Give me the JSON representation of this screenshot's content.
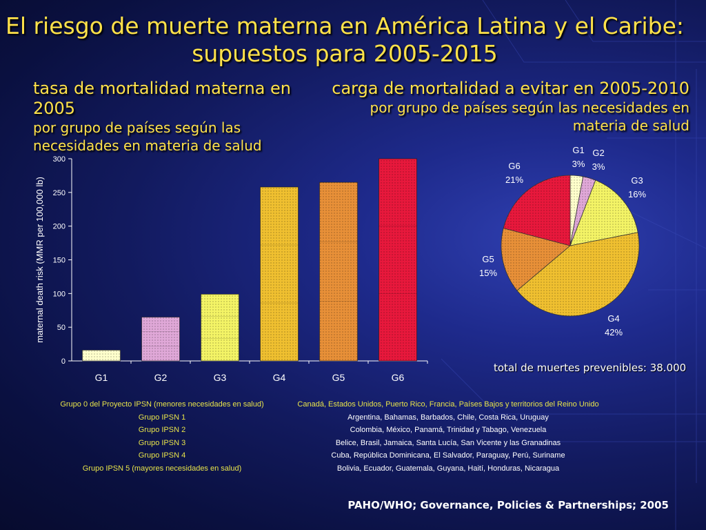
{
  "title": {
    "line1": "El riesgo de muerte materna en América Latina y el Caribe:",
    "line2": "supuestos para 2005-2015"
  },
  "left_subtitle": {
    "head": "tasa de mortalidad materna en 2005",
    "line1": "por grupo de países según las",
    "line2": "necesidades en materia de salud"
  },
  "right_subtitle": {
    "head": "carga de mortalidad a evitar en 2005-2010",
    "line1": "por grupo de países según las necesidades en",
    "line2": "materia de salud"
  },
  "total_text": "total de muertes prevenibles: 38.000",
  "legend": {
    "groups": [
      "Grupo 0 del Proyecto IPSN (menores necesidades en salud)",
      "Grupo IPSN 1",
      "Grupo IPSN 2",
      "Grupo IPSN 3",
      "Grupo IPSN 4",
      "Grupo IPSN 5 (mayores necesidades en salud)"
    ],
    "countries": [
      "Canadá, Estados Unidos, Puerto Rico, Francia, Países Bajos y territorios del Reino Unido",
      "Argentina, Bahamas, Barbados, Chile, Costa Rica, Uruguay",
      "Colombia, México, Panamá, Trinidad y Tabago, Venezuela",
      "Belice, Brasil, Jamaica, Santa Lucía, San Vicente y las Granadinas",
      "Cuba, República Dominicana, El Salvador, Paraguay, Perú, Suriname",
      "Bolivia, Ecuador, Guatemala, Guyana, Haití, Honduras, Nicaragua"
    ]
  },
  "source": "PAHO/WHO; Governance, Policies & Partnerships; 2005",
  "chart_data": [
    {
      "type": "bar",
      "categories": [
        "G1",
        "G2",
        "G3",
        "G4",
        "G5",
        "G6"
      ],
      "values": [
        16,
        65,
        99,
        258,
        265,
        300
      ],
      "colors": [
        "#ffffcc",
        "#e0a8d8",
        "#f4f466",
        "#f0c030",
        "#e89038",
        "#e8183c"
      ],
      "ylabel": "maternal death risk (MMR per 100,000 lb)",
      "ylim": [
        0,
        300
      ],
      "yticks": [
        0,
        50,
        100,
        150,
        200,
        250,
        300
      ]
    },
    {
      "type": "pie",
      "labels": [
        "G1",
        "G2",
        "G3",
        "G4",
        "G5",
        "G6"
      ],
      "values": [
        3,
        3,
        16,
        42,
        15,
        21
      ],
      "percent_labels": [
        "3%",
        "3%",
        "16%",
        "42%",
        "15%",
        "21%"
      ],
      "colors": [
        "#ffffcc",
        "#e0a8d8",
        "#f4f466",
        "#f0c030",
        "#e89038",
        "#e8183c"
      ]
    }
  ]
}
